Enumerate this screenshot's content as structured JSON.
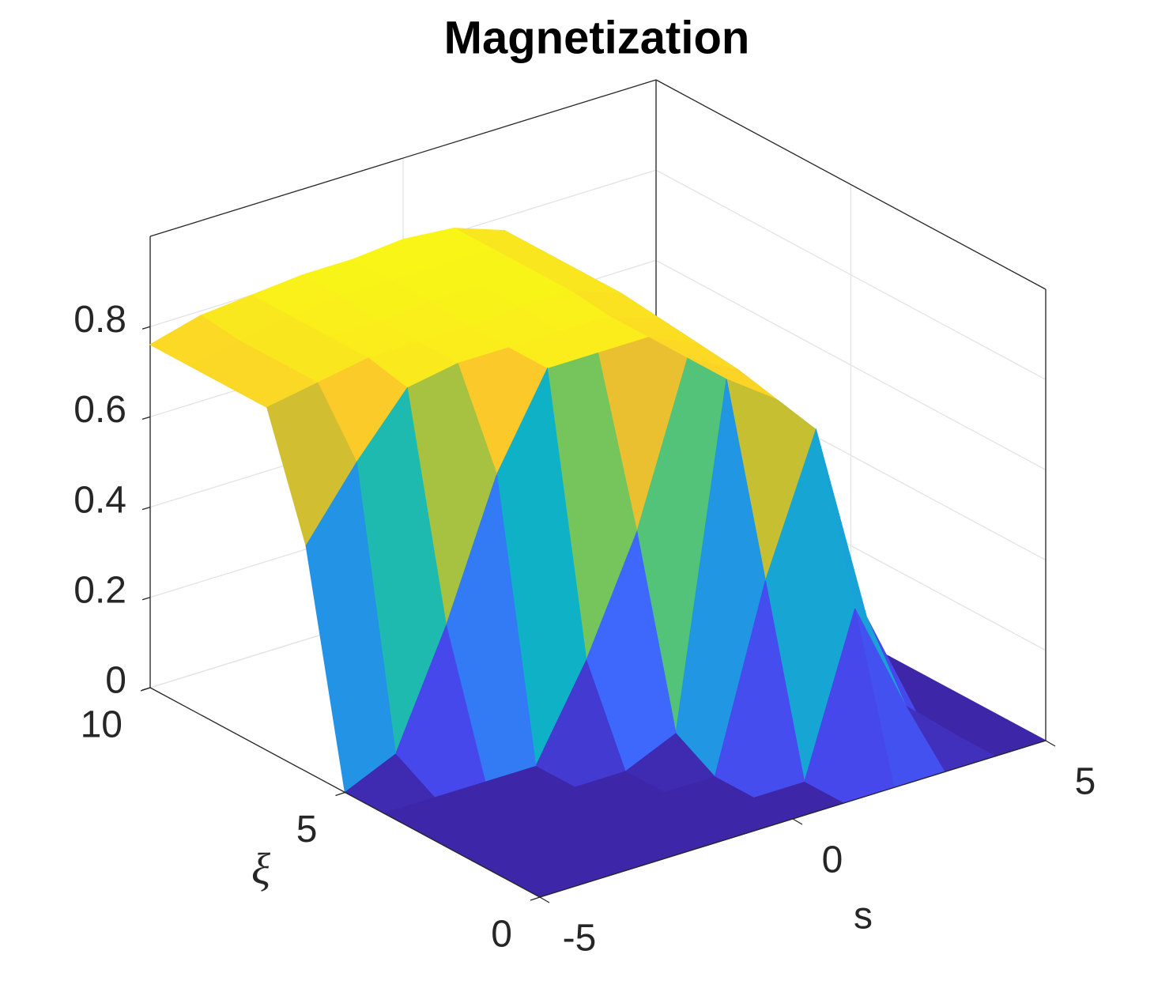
{
  "chart_data": {
    "type": "surface",
    "title": "Magnetization",
    "xlabel": "s",
    "ylabel": "ξ",
    "x": [
      -5,
      -4,
      -3,
      -2,
      -1,
      0,
      1,
      2,
      3,
      4,
      5
    ],
    "y": [
      0,
      1,
      2,
      3,
      4,
      5,
      6,
      7,
      8,
      9,
      10
    ],
    "z": [
      [
        0,
        0,
        0,
        0,
        0,
        0,
        0,
        0,
        0,
        0,
        0
      ],
      [
        0,
        0,
        0,
        0,
        0,
        0,
        0,
        0.35,
        0.1,
        0,
        0
      ],
      [
        0,
        0,
        0,
        0,
        0,
        0,
        0.4,
        0.7,
        0.25,
        0,
        0
      ],
      [
        0,
        0,
        0,
        0,
        0,
        0.05,
        0.8,
        0.72,
        0.3,
        0,
        0
      ],
      [
        0,
        0,
        0,
        0,
        0.2,
        0.45,
        0.8,
        0.74,
        0.3,
        0,
        0
      ],
      [
        0,
        0.05,
        0.3,
        0.6,
        0.8,
        0.8,
        0.8,
        0.75,
        0.3,
        0,
        0
      ],
      [
        0.5,
        0.65,
        0.78,
        0.8,
        0.8,
        0.8,
        0.8,
        0.76,
        0.3,
        0,
        0
      ],
      [
        0.76,
        0.78,
        0.8,
        0.8,
        0.8,
        0.81,
        0.81,
        0.77,
        0.3,
        0,
        0
      ],
      [
        0.76,
        0.78,
        0.8,
        0.8,
        0.81,
        0.81,
        0.81,
        0.77,
        0.3,
        0,
        0
      ],
      [
        0.76,
        0.78,
        0.8,
        0.81,
        0.81,
        0.81,
        0.81,
        0.77,
        0.3,
        0,
        0
      ],
      [
        0.76,
        0.79,
        0.8,
        0.81,
        0.81,
        0.82,
        0.81,
        0.77,
        0.3,
        0,
        0
      ]
    ],
    "colormap": "parula",
    "xlim": [
      -5,
      5
    ],
    "ylim": [
      0,
      10
    ],
    "zlim": [
      0,
      1
    ],
    "xticks": [
      -5,
      0,
      5
    ],
    "yticks": [
      0,
      5,
      10
    ],
    "zticks": [
      0,
      0.2,
      0.4,
      0.6,
      0.8
    ],
    "grid": true
  }
}
